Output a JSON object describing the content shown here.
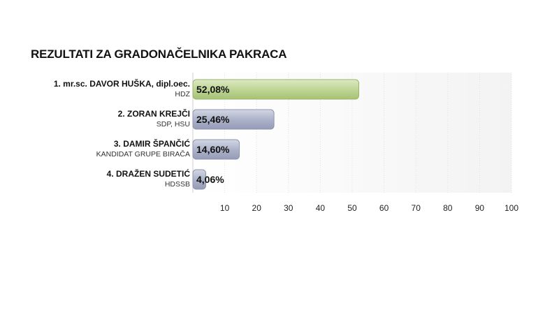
{
  "chart_data": {
    "type": "bar",
    "title": "REZULTATI ZA GRADONAČELNIKA PAKRACA",
    "orientation": "horizontal",
    "categories": [
      {
        "name": "1. mr.sc. DAVOR HUŠKA, dipl.oec.",
        "party": "HDZ"
      },
      {
        "name": "2. ZORAN KREJČI",
        "party": "SDP, HSU"
      },
      {
        "name": "3. DAMIR ŠPANČIĆ",
        "party": "KANDIDAT GRUPE BIRAČA"
      },
      {
        "name": "4. DRAŽEN SUDETIĆ",
        "party": "HDSSB"
      }
    ],
    "values": [
      52.08,
      25.46,
      14.6,
      4.06
    ],
    "value_labels": [
      "52,08%",
      "25,46%",
      "14,60%",
      "4,06%"
    ],
    "bar_colors": [
      "#b9d18c",
      "#a6adc4",
      "#a6adc4",
      "#a6adc4"
    ],
    "xlim": [
      0,
      100
    ],
    "xticks": [
      10,
      20,
      30,
      40,
      50,
      60,
      70,
      80,
      90,
      100
    ],
    "grid": true
  }
}
